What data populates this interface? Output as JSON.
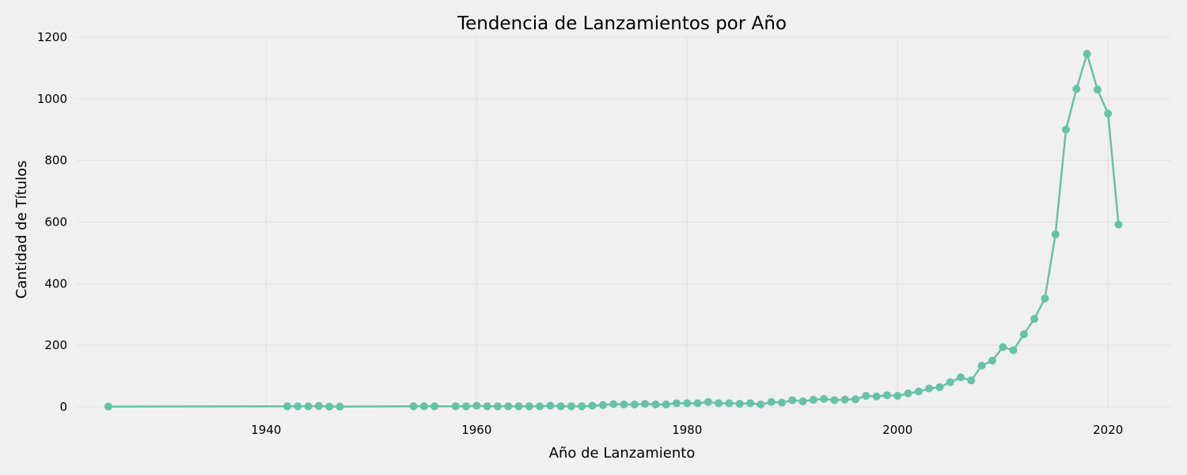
{
  "chart_data": {
    "type": "line",
    "title": "Tendencia de Lanzamientos por Año",
    "xlabel": "Año de Lanzamiento",
    "ylabel": "Cantidad de Títulos",
    "xlim": [
      1922,
      2026
    ],
    "ylim": [
      0,
      1200
    ],
    "xticks": [
      1940,
      1960,
      1980,
      2000,
      2020
    ],
    "yticks": [
      0,
      200,
      400,
      600,
      800,
      1000,
      1200
    ],
    "grid": true,
    "color": "#66c2a5",
    "series": [
      {
        "x": [
          1925,
          1942,
          1943,
          1944,
          1945,
          1946,
          1947,
          1954,
          1955,
          1956,
          1958,
          1959,
          1960,
          1961,
          1962,
          1963,
          1964,
          1965,
          1966,
          1967,
          1968,
          1969,
          1970,
          1971,
          1972,
          1973,
          1974,
          1975,
          1976,
          1977,
          1978,
          1979,
          1980,
          1981,
          1982,
          1983,
          1984,
          1985,
          1986,
          1987,
          1988,
          1989,
          1990,
          1991,
          1992,
          1993,
          1994,
          1995,
          1996,
          1997,
          1998,
          1999,
          2000,
          2001,
          2002,
          2003,
          2004,
          2005,
          2006,
          2007,
          2008,
          2009,
          2010,
          2011,
          2012,
          2013,
          2014,
          2015,
          2016,
          2017,
          2018,
          2019,
          2020,
          2021
        ],
        "y": [
          1,
          2,
          2,
          2,
          3,
          1,
          1,
          2,
          2,
          2,
          2,
          2,
          4,
          2,
          2,
          2,
          2,
          2,
          2,
          4,
          2,
          2,
          2,
          4,
          6,
          9,
          8,
          8,
          10,
          8,
          8,
          12,
          12,
          12,
          16,
          12,
          12,
          10,
          12,
          8,
          16,
          14,
          22,
          18,
          23,
          26,
          22,
          24,
          25,
          36,
          34,
          38,
          36,
          44,
          50,
          60,
          64,
          80,
          96,
          86,
          134,
          150,
          194,
          184,
          236,
          286,
          352,
          560,
          900,
          1032,
          1146,
          1030,
          952,
          592
        ]
      }
    ]
  }
}
